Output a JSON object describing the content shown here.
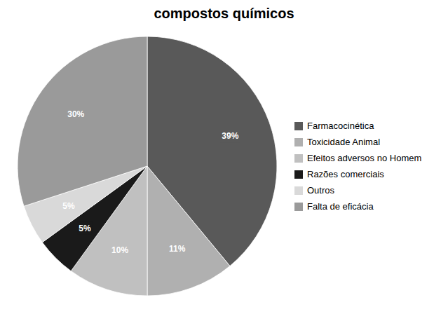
{
  "chart_data": {
    "type": "pie",
    "title": "compostos químicos",
    "categories": [
      "Farmacocinética",
      "Toxicidade Animal",
      "Efeitos adversos no Homem",
      "Razões comerciais",
      "Outros",
      "Falta de eficácia"
    ],
    "values": [
      39,
      11,
      10,
      5,
      5,
      30
    ],
    "value_labels": [
      "39%",
      "11%",
      "10%",
      "5%",
      "5%",
      "30%"
    ],
    "colors": [
      "#595959",
      "#b0b0b0",
      "#c0c0c0",
      "#1a1a1a",
      "#d9d9d9",
      "#9a9a9a"
    ],
    "data_labels": true,
    "legend": "right"
  }
}
